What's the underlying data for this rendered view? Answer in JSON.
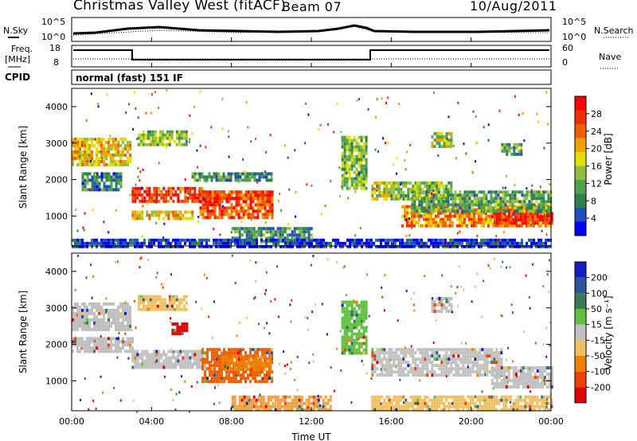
{
  "header": {
    "title": "Christmas Valley West (fitACF)",
    "beam": "Beam 07",
    "date": "10/Aug/2011"
  },
  "top_panels": {
    "nsky_label": "N.Sky",
    "nsearch_label": "N.Search",
    "noise_ticks": [
      "10^5",
      "10^0"
    ],
    "freq_label_1": "Freq.",
    "freq_label_2": "[MHz]",
    "freq_ticks": [
      "18",
      "8"
    ],
    "nave_label": "Nave",
    "nave_ticks": [
      "60",
      "0"
    ],
    "cpid_label": "CPID",
    "cpid_text": "normal (fast) 151 IF"
  },
  "time_axis": {
    "label": "Time UT",
    "ticks": [
      "00:00",
      "04:00",
      "08:00",
      "12:00",
      "16:00",
      "20:00",
      "00:00"
    ]
  },
  "chart_data": [
    {
      "type": "heatmap",
      "name": "power",
      "ylabel": "Slant Range [km]",
      "ylim": [
        180,
        4500
      ],
      "yticks": [
        1000,
        2000,
        3000,
        4000
      ],
      "xlim_hours": [
        0,
        24
      ],
      "colorbar_label": "Power [dB]",
      "colorbar_ticks": [
        "28",
        "24",
        "20",
        "16",
        "12",
        "8",
        "4"
      ],
      "colors": [
        "#0000ff",
        "#1f4fbf",
        "#2f7f4f",
        "#4fa04f",
        "#90c040",
        "#e0e000",
        "#f0a000",
        "#f06000",
        "#f03000",
        "#ff0000"
      ],
      "regions": [
        {
          "t": [
            0,
            2.9
          ],
          "r": [
            2450,
            3150
          ],
          "level": 0.6
        },
        {
          "t": [
            0.5,
            2.5
          ],
          "r": [
            1750,
            2200
          ],
          "level": 0.25
        },
        {
          "t": [
            3,
            6.6
          ],
          "r": [
            1400,
            1800
          ],
          "level": 0.85
        },
        {
          "t": [
            6.4,
            9.5
          ],
          "r": [
            1450,
            1700
          ],
          "level": 0.75
        },
        {
          "t": [
            3.3,
            5.8
          ],
          "r": [
            3000,
            3350
          ],
          "level": 0.45
        },
        {
          "t": [
            3,
            6
          ],
          "r": [
            950,
            1150
          ],
          "level": 0.6
        },
        {
          "t": [
            6.4,
            10
          ],
          "r": [
            1000,
            1700
          ],
          "level": 0.8
        },
        {
          "t": [
            6,
            10
          ],
          "r": [
            2000,
            2200
          ],
          "level": 0.3
        },
        {
          "t": [
            8,
            12
          ],
          "r": [
            300,
            700
          ],
          "level": 0.3
        },
        {
          "t": [
            13.5,
            14.8
          ],
          "r": [
            1800,
            3200
          ],
          "level": 0.4
        },
        {
          "t": [
            15,
            19
          ],
          "r": [
            1500,
            1950
          ],
          "level": 0.45
        },
        {
          "t": [
            16.5,
            24
          ],
          "r": [
            700,
            1300
          ],
          "level": 0.7
        },
        {
          "t": [
            21,
            24
          ],
          "r": [
            800,
            1200
          ],
          "level": 0.9
        },
        {
          "t": [
            17,
            24
          ],
          "r": [
            1150,
            1700
          ],
          "level": 0.35
        },
        {
          "t": [
            0,
            24
          ],
          "r": [
            180,
            380
          ],
          "level": 0.1
        },
        {
          "t": [
            18,
            19
          ],
          "r": [
            2900,
            3300
          ],
          "level": 0.5
        },
        {
          "t": [
            21.5,
            22.5
          ],
          "r": [
            2700,
            3000
          ],
          "level": 0.35
        }
      ]
    },
    {
      "type": "heatmap",
      "name": "velocity",
      "ylabel": "Slant Range [km]",
      "ylim": [
        180,
        4500
      ],
      "yticks": [
        1000,
        2000,
        3000,
        4000
      ],
      "xlim_hours": [
        0,
        24
      ],
      "colorbar_label": "Velocity [m s⁻¹]",
      "colorbar_ticks": [
        "200",
        "100",
        "50",
        "15",
        "-15",
        "-50",
        "-100",
        "-200"
      ],
      "colors": [
        "#e00000",
        "#f04000",
        "#f08000",
        "#f0c060",
        "#c0c0c0",
        "#60c040",
        "#3a7a5a",
        "#3050a0",
        "#1020c0"
      ],
      "regions": [
        {
          "t": [
            0,
            2.9
          ],
          "r": [
            2450,
            3150
          ],
          "v": "#c0c0c0"
        },
        {
          "t": [
            3,
            6.5
          ],
          "r": [
            1400,
            1850
          ],
          "v": "#c0c0c0"
        },
        {
          "t": [
            3.3,
            5.8
          ],
          "r": [
            3000,
            3350
          ],
          "v": "#f0c060"
        },
        {
          "t": [
            6.5,
            10
          ],
          "r": [
            1000,
            1900
          ],
          "v": "#f06000"
        },
        {
          "t": [
            7.5,
            10
          ],
          "r": [
            1300,
            1700
          ],
          "v": "#f08000"
        },
        {
          "t": [
            5,
            5.8
          ],
          "r": [
            2300,
            2600
          ],
          "v": "#e00000"
        },
        {
          "t": [
            13.5,
            14.8
          ],
          "r": [
            1800,
            3200
          ],
          "v": "#60c040"
        },
        {
          "t": [
            15,
            21.5
          ],
          "r": [
            1200,
            1900
          ],
          "v": "#c0c0c0"
        },
        {
          "t": [
            21,
            24
          ],
          "r": [
            800,
            1400
          ],
          "v": "#c0c0c0"
        },
        {
          "t": [
            15,
            24
          ],
          "r": [
            200,
            600
          ],
          "v": "#f0c060"
        },
        {
          "t": [
            8,
            13
          ],
          "r": [
            250,
            600
          ],
          "v": "#f0a040"
        },
        {
          "t": [
            18,
            19
          ],
          "r": [
            2900,
            3300
          ],
          "v": "#c0c0c0"
        },
        {
          "t": [
            0,
            3
          ],
          "r": [
            1800,
            2200
          ],
          "v": "#c0c0c0"
        }
      ]
    }
  ]
}
